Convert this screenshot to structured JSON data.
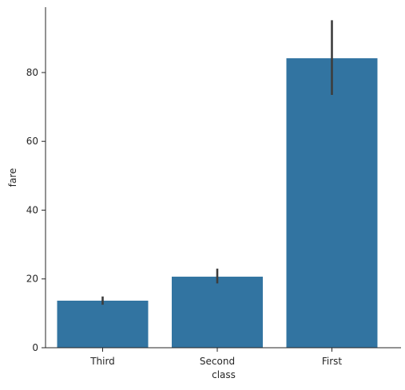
{
  "chart_data": {
    "type": "bar",
    "categories": [
      "Third",
      "Second",
      "First"
    ],
    "values": [
      13.68,
      20.66,
      84.15
    ],
    "error_bars": [
      {
        "low": 12.5,
        "high": 14.9
      },
      {
        "low": 18.7,
        "high": 23.0
      },
      {
        "low": 73.5,
        "high": 95.2
      }
    ],
    "xlabel": "class",
    "ylabel": "fare",
    "ylim": [
      0,
      99
    ],
    "yticks": [
      0,
      20,
      40,
      60,
      80
    ],
    "grid": false,
    "legend": "none",
    "colors": {
      "bar": "#3274a1",
      "error_bar": "#3d3d3d",
      "axis": "#262626"
    }
  }
}
